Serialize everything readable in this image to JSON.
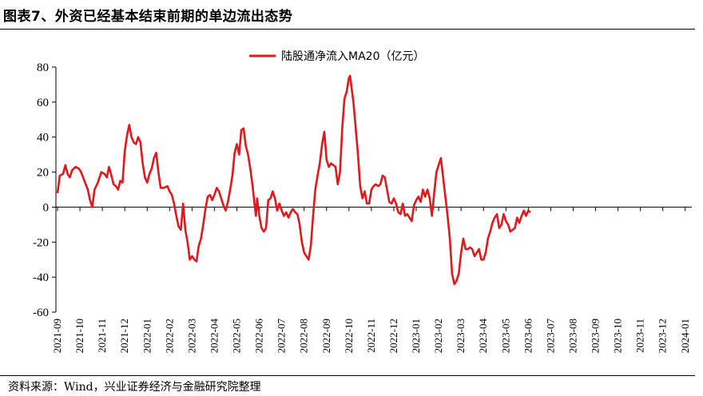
{
  "page": {
    "title": "图表7、外资已经基本结束前期的单边流出态势",
    "source": "资料来源：Wind，兴业证券经济与金融研究院整理"
  },
  "chart_data": {
    "type": "line",
    "title": "",
    "xlabel": "",
    "ylabel": "",
    "ylim": [
      -60,
      80
    ],
    "yticks": [
      80,
      60,
      40,
      20,
      0,
      -20,
      -40,
      -60
    ],
    "x_categories": [
      "2021-09",
      "2021-10",
      "2021-11",
      "2021-12",
      "2022-01",
      "2022-02",
      "2022-03",
      "2022-04",
      "2022-05",
      "2022-06",
      "2022-07",
      "2022-08",
      "2022-09",
      "2022-10",
      "2022-11",
      "2022-12",
      "2023-01",
      "2023-02",
      "2023-03",
      "2023-04",
      "2023-05",
      "2023-06",
      "2023-07",
      "2023-08",
      "2023-09",
      "2023-10",
      "2023-11",
      "2023-12",
      "2024-01"
    ],
    "legend_position": "top-center",
    "grid": false,
    "series": [
      {
        "name": "陆股通净流入MA20（亿元）",
        "color": "#e0191e",
        "points": [
          [
            0.0,
            8
          ],
          [
            0.1,
            18
          ],
          [
            0.25,
            19
          ],
          [
            0.35,
            24
          ],
          [
            0.45,
            19
          ],
          [
            0.55,
            17
          ],
          [
            0.65,
            21
          ],
          [
            0.8,
            23
          ],
          [
            0.95,
            22
          ],
          [
            1.05,
            20
          ],
          [
            1.2,
            15
          ],
          [
            1.35,
            10
          ],
          [
            1.45,
            4
          ],
          [
            1.55,
            0
          ],
          [
            1.65,
            10
          ],
          [
            1.8,
            14
          ],
          [
            1.95,
            20
          ],
          [
            2.1,
            19
          ],
          [
            2.2,
            17
          ],
          [
            2.3,
            23
          ],
          [
            2.4,
            18
          ],
          [
            2.5,
            13
          ],
          [
            2.6,
            12
          ],
          [
            2.7,
            10
          ],
          [
            2.8,
            15
          ],
          [
            2.9,
            14
          ],
          [
            3.0,
            32
          ],
          [
            3.1,
            41
          ],
          [
            3.2,
            47
          ],
          [
            3.3,
            40
          ],
          [
            3.4,
            37
          ],
          [
            3.5,
            36
          ],
          [
            3.6,
            40
          ],
          [
            3.7,
            37
          ],
          [
            3.8,
            25
          ],
          [
            3.9,
            17
          ],
          [
            4.0,
            14
          ],
          [
            4.1,
            19
          ],
          [
            4.2,
            22
          ],
          [
            4.3,
            28
          ],
          [
            4.4,
            31
          ],
          [
            4.5,
            20
          ],
          [
            4.6,
            11
          ],
          [
            4.75,
            11
          ],
          [
            4.9,
            12
          ],
          [
            5.0,
            9
          ],
          [
            5.1,
            7
          ],
          [
            5.2,
            2
          ],
          [
            5.3,
            -5
          ],
          [
            5.4,
            -11
          ],
          [
            5.5,
            -13
          ],
          [
            5.6,
            2
          ],
          [
            5.7,
            -13
          ],
          [
            5.8,
            -20
          ],
          [
            5.9,
            -30
          ],
          [
            6.0,
            -28
          ],
          [
            6.1,
            -30
          ],
          [
            6.2,
            -31
          ],
          [
            6.3,
            -22
          ],
          [
            6.4,
            -18
          ],
          [
            6.5,
            -10
          ],
          [
            6.6,
            -1
          ],
          [
            6.7,
            6
          ],
          [
            6.8,
            7
          ],
          [
            6.9,
            4
          ],
          [
            7.0,
            7
          ],
          [
            7.1,
            11
          ],
          [
            7.2,
            9
          ],
          [
            7.3,
            5
          ],
          [
            7.4,
            1
          ],
          [
            7.5,
            -2
          ],
          [
            7.6,
            3
          ],
          [
            7.7,
            10
          ],
          [
            7.8,
            18
          ],
          [
            7.9,
            31
          ],
          [
            8.0,
            36
          ],
          [
            8.1,
            30
          ],
          [
            8.2,
            44
          ],
          [
            8.3,
            45
          ],
          [
            8.4,
            35
          ],
          [
            8.5,
            30
          ],
          [
            8.6,
            22
          ],
          [
            8.7,
            12
          ],
          [
            8.8,
            0
          ],
          [
            8.85,
            -5
          ],
          [
            8.9,
            5
          ],
          [
            9.0,
            -5
          ],
          [
            9.1,
            -12
          ],
          [
            9.2,
            -14
          ],
          [
            9.3,
            -12
          ],
          [
            9.4,
            4
          ],
          [
            9.5,
            5
          ],
          [
            9.6,
            9
          ],
          [
            9.7,
            5
          ],
          [
            9.8,
            -2
          ],
          [
            9.9,
            2
          ],
          [
            10.0,
            -2
          ],
          [
            10.1,
            -5
          ],
          [
            10.2,
            -3
          ],
          [
            10.3,
            -6
          ],
          [
            10.4,
            -3
          ],
          [
            10.5,
            -1
          ],
          [
            10.6,
            -3
          ],
          [
            10.7,
            -4
          ],
          [
            10.8,
            -10
          ],
          [
            10.9,
            -20
          ],
          [
            11.0,
            -26
          ],
          [
            11.1,
            -28
          ],
          [
            11.2,
            -30
          ],
          [
            11.3,
            -22
          ],
          [
            11.4,
            -5
          ],
          [
            11.5,
            10
          ],
          [
            11.6,
            18
          ],
          [
            11.7,
            25
          ],
          [
            11.8,
            36
          ],
          [
            11.9,
            43
          ],
          [
            12.0,
            27
          ],
          [
            12.1,
            23
          ],
          [
            12.2,
            25
          ],
          [
            12.3,
            24
          ],
          [
            12.4,
            23
          ],
          [
            12.5,
            13
          ],
          [
            12.6,
            20
          ],
          [
            12.7,
            45
          ],
          [
            12.8,
            62
          ],
          [
            12.9,
            66
          ],
          [
            13.0,
            74
          ],
          [
            13.05,
            75
          ],
          [
            13.1,
            70
          ],
          [
            13.2,
            60
          ],
          [
            13.3,
            45
          ],
          [
            13.4,
            30
          ],
          [
            13.5,
            12
          ],
          [
            13.6,
            5
          ],
          [
            13.7,
            9
          ],
          [
            13.8,
            2
          ],
          [
            13.9,
            2
          ],
          [
            14.0,
            10
          ],
          [
            14.1,
            12
          ],
          [
            14.2,
            13
          ],
          [
            14.3,
            12
          ],
          [
            14.4,
            13
          ],
          [
            14.5,
            18
          ],
          [
            14.6,
            17
          ],
          [
            14.7,
            10
          ],
          [
            14.8,
            3
          ],
          [
            14.9,
            2
          ],
          [
            15.0,
            5
          ],
          [
            15.1,
            2
          ],
          [
            15.2,
            -3
          ],
          [
            15.3,
            -4
          ],
          [
            15.4,
            2
          ],
          [
            15.5,
            -5
          ],
          [
            15.6,
            -4
          ],
          [
            15.7,
            -6
          ],
          [
            15.8,
            -8
          ],
          [
            15.9,
            1
          ],
          [
            16.0,
            4
          ],
          [
            16.1,
            6
          ],
          [
            16.2,
            3
          ],
          [
            16.3,
            10
          ],
          [
            16.4,
            6
          ],
          [
            16.5,
            10
          ],
          [
            16.6,
            5
          ],
          [
            16.7,
            -5
          ],
          [
            16.8,
            8
          ],
          [
            16.9,
            20
          ],
          [
            17.0,
            24
          ],
          [
            17.1,
            28
          ],
          [
            17.2,
            17
          ],
          [
            17.3,
            6
          ],
          [
            17.4,
            -5
          ],
          [
            17.5,
            -18
          ],
          [
            17.6,
            -38
          ],
          [
            17.7,
            -44
          ],
          [
            17.8,
            -42
          ],
          [
            17.9,
            -38
          ],
          [
            18.0,
            -26
          ],
          [
            18.1,
            -18
          ],
          [
            18.2,
            -24
          ],
          [
            18.3,
            -24
          ],
          [
            18.4,
            -23
          ],
          [
            18.5,
            -24
          ],
          [
            18.6,
            -28
          ],
          [
            18.7,
            -26
          ],
          [
            18.8,
            -24
          ],
          [
            18.9,
            -30
          ],
          [
            19.0,
            -30
          ],
          [
            19.1,
            -26
          ],
          [
            19.2,
            -18
          ],
          [
            19.3,
            -14
          ],
          [
            19.4,
            -9
          ],
          [
            19.5,
            -6
          ],
          [
            19.6,
            -4
          ],
          [
            19.7,
            -12
          ],
          [
            19.8,
            -10
          ],
          [
            19.9,
            -4
          ],
          [
            20.0,
            -8
          ],
          [
            20.1,
            -10
          ],
          [
            20.2,
            -14
          ],
          [
            20.3,
            -13
          ],
          [
            20.4,
            -12
          ],
          [
            20.5,
            -6
          ],
          [
            20.6,
            -9
          ],
          [
            20.7,
            -5
          ],
          [
            20.8,
            -2
          ],
          [
            20.9,
            -5
          ],
          [
            21.0,
            -2
          ],
          [
            21.1,
            -3
          ]
        ]
      }
    ]
  }
}
